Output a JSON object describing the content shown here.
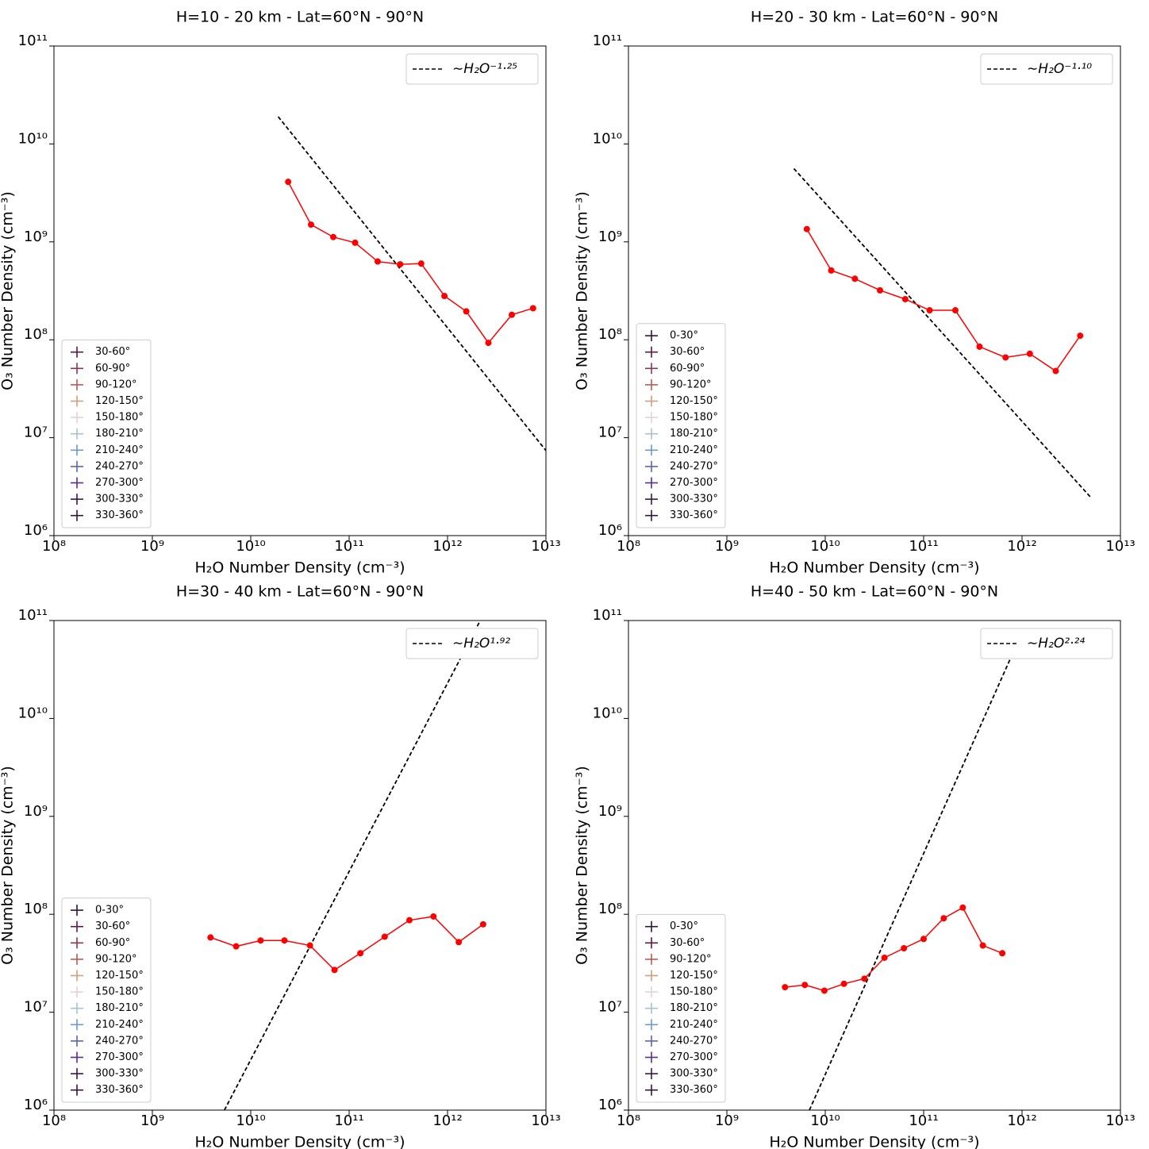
{
  "chart_data": [
    {
      "type": "line",
      "title": "H=10 - 20 km - Lat=60°N - 90°N",
      "xlabel": "H₂O Number Density (cm⁻³)",
      "ylabel": "O₃ Number Density (cm⁻³)",
      "xscale": "log",
      "yscale": "log",
      "xlim": [
        100000000.0,
        10000000000000.0
      ],
      "ylim": [
        1000000.0,
        100000000000.0
      ],
      "xticks": [
        {
          "value": 100000000.0,
          "label": "10⁸"
        },
        {
          "value": 1000000000.0,
          "label": "10⁹"
        },
        {
          "value": 10000000000.0,
          "label": "10¹⁰"
        },
        {
          "value": 100000000000.0,
          "label": "10¹¹"
        },
        {
          "value": 1000000000000.0,
          "label": "10¹²"
        },
        {
          "value": 10000000000000.0,
          "label": "10¹³"
        }
      ],
      "yticks": [
        {
          "value": 1000000.0,
          "label": "10⁶"
        },
        {
          "value": 10000000.0,
          "label": "10⁷"
        },
        {
          "value": 100000000.0,
          "label": "10⁸"
        },
        {
          "value": 1000000000.0,
          "label": "10⁹"
        },
        {
          "value": 10000000000.0,
          "label": "10¹⁰"
        },
        {
          "value": 100000000000.0,
          "label": "10¹¹"
        }
      ],
      "series": [
        {
          "color": "#ff0000",
          "x": [
            24000000000.0,
            41000000000.0,
            69000000000.0,
            115000000000.0,
            195000000000.0,
            330000000000.0,
            540000000000.0,
            930000000000.0,
            1550000000000.0,
            2600000000000.0,
            4500000000000.0,
            7400000000000.0
          ],
          "values": [
            4100000000.0,
            1500000000.0,
            1120000000.0,
            980000000.0,
            630000000.0,
            590000000.0,
            600000000.0,
            280000000.0,
            195000000.0,
            93000000.0,
            180000000.0,
            210000000.0
          ]
        }
      ],
      "fit": {
        "label": "∼H₂O⁻¹·²⁵",
        "color": "#000000",
        "x": [
          19000000000.0,
          10000000000000.0
        ],
        "values": [
          19000000000.0,
          7400000.0
        ]
      },
      "legend_location": "lower left",
      "fit_legend_location": "upper right",
      "legend": [
        {
          "name": "30-60°",
          "color": "#5a1a48"
        },
        {
          "name": "60-90°",
          "color": "#8a3551"
        },
        {
          "name": "90-120°",
          "color": "#b05e55"
        },
        {
          "name": "120-150°",
          "color": "#cfa080"
        },
        {
          "name": "150-180°",
          "color": "#e4d2d6"
        },
        {
          "name": "180-210°",
          "color": "#a9c1cc"
        },
        {
          "name": "210-240°",
          "color": "#6d9ac6"
        },
        {
          "name": "240-270°",
          "color": "#5b64b3"
        },
        {
          "name": "270-300°",
          "color": "#5c2c86"
        },
        {
          "name": "300-330°",
          "color": "#3b1745"
        },
        {
          "name": "330-360°",
          "color": "#36143d"
        }
      ]
    },
    {
      "type": "line",
      "title": "H=20 - 30 km - Lat=60°N - 90°N",
      "xlabel": "H₂O Number Density (cm⁻³)",
      "ylabel": "O₃ Number Density (cm⁻³)",
      "xscale": "log",
      "yscale": "log",
      "xlim": [
        100000000.0,
        10000000000000.0
      ],
      "ylim": [
        1000000.0,
        100000000000.0
      ],
      "xticks": [
        {
          "value": 100000000.0,
          "label": "10⁸"
        },
        {
          "value": 1000000000.0,
          "label": "10⁹"
        },
        {
          "value": 10000000000.0,
          "label": "10¹⁰"
        },
        {
          "value": 100000000000.0,
          "label": "10¹¹"
        },
        {
          "value": 1000000000000.0,
          "label": "10¹²"
        },
        {
          "value": 10000000000000.0,
          "label": "10¹³"
        }
      ],
      "yticks": [
        {
          "value": 1000000.0,
          "label": "10⁶"
        },
        {
          "value": 10000000.0,
          "label": "10⁷"
        },
        {
          "value": 100000000.0,
          "label": "10⁸"
        },
        {
          "value": 1000000000.0,
          "label": "10⁹"
        },
        {
          "value": 10000000000.0,
          "label": "10¹⁰"
        },
        {
          "value": 100000000000.0,
          "label": "10¹¹"
        }
      ],
      "series": [
        {
          "color": "#ff0000",
          "x": [
            6500000000.0,
            11500000000.0,
            20000000000.0,
            36000000000.0,
            65000000000.0,
            115000000000.0,
            210000000000.0,
            370000000000.0,
            680000000000.0,
            1200000000000.0,
            2200000000000.0,
            3900000000000.0
          ],
          "values": [
            1350000000.0,
            510000000.0,
            420000000.0,
            320000000.0,
            260000000.0,
            200000000.0,
            200000000.0,
            85000000.0,
            66000000.0,
            72000000.0,
            48000000.0,
            110000000.0
          ]
        }
      ],
      "fit": {
        "label": "∼H₂O⁻¹·¹⁰",
        "color": "#000000",
        "x": [
          4800000000.0,
          5100000000000.0
        ],
        "values": [
          5600000000.0,
          2400000.0
        ]
      },
      "legend_location": "lower left",
      "fit_legend_location": "upper right",
      "legend": [
        {
          "name": "0-30°",
          "color": "#2f1436"
        },
        {
          "name": "30-60°",
          "color": "#5a1a48"
        },
        {
          "name": "60-90°",
          "color": "#8a3551"
        },
        {
          "name": "90-120°",
          "color": "#b05e55"
        },
        {
          "name": "120-150°",
          "color": "#cfa080"
        },
        {
          "name": "150-180°",
          "color": "#e4d2d6"
        },
        {
          "name": "180-210°",
          "color": "#a9c1cc"
        },
        {
          "name": "210-240°",
          "color": "#6d9ac6"
        },
        {
          "name": "240-270°",
          "color": "#5b64b3"
        },
        {
          "name": "270-300°",
          "color": "#5c2c86"
        },
        {
          "name": "300-330°",
          "color": "#3b1745"
        },
        {
          "name": "330-360°",
          "color": "#36143d"
        }
      ]
    },
    {
      "type": "line",
      "title": "H=30 - 40 km - Lat=60°N - 90°N",
      "xlabel": "H₂O Number Density (cm⁻³)",
      "ylabel": "O₃ Number Density (cm⁻³)",
      "xscale": "log",
      "yscale": "log",
      "xlim": [
        100000000.0,
        10000000000000.0
      ],
      "ylim": [
        1000000.0,
        100000000000.0
      ],
      "xticks": [
        {
          "value": 100000000.0,
          "label": "10⁸"
        },
        {
          "value": 1000000000.0,
          "label": "10⁹"
        },
        {
          "value": 10000000000.0,
          "label": "10¹⁰"
        },
        {
          "value": 100000000000.0,
          "label": "10¹¹"
        },
        {
          "value": 1000000000000.0,
          "label": "10¹²"
        },
        {
          "value": 10000000000000.0,
          "label": "10¹³"
        }
      ],
      "yticks": [
        {
          "value": 1000000.0,
          "label": "10⁶"
        },
        {
          "value": 10000000.0,
          "label": "10⁷"
        },
        {
          "value": 100000000.0,
          "label": "10⁸"
        },
        {
          "value": 1000000000.0,
          "label": "10⁹"
        },
        {
          "value": 10000000000.0,
          "label": "10¹⁰"
        },
        {
          "value": 100000000000.0,
          "label": "10¹¹"
        }
      ],
      "series": [
        {
          "color": "#ff0000",
          "x": [
            3900000000.0,
            7100000000.0,
            12600000000.0,
            22000000000.0,
            40000000000.0,
            71000000000.0,
            130000000000.0,
            230000000000.0,
            410000000000.0,
            720000000000.0,
            1300000000000.0,
            2300000000000.0
          ],
          "values": [
            58000000.0,
            47000000.0,
            54000000.0,
            54000000.0,
            48000000.0,
            27000000.0,
            40000000.0,
            59000000.0,
            87000000.0,
            95000000.0,
            52000000.0,
            79000000.0
          ]
        }
      ],
      "fit": {
        "label": "∼H₂O¹·⁹²",
        "color": "#000000",
        "x": [
          5400000000.0,
          2150000000000.0
        ],
        "values": [
          1000000.0,
          100000000000.0
        ]
      },
      "legend_location": "lower left",
      "fit_legend_location": "upper right",
      "legend": [
        {
          "name": "0-30°",
          "color": "#2f1436"
        },
        {
          "name": "30-60°",
          "color": "#5a1a48"
        },
        {
          "name": "60-90°",
          "color": "#8a3551"
        },
        {
          "name": "90-120°",
          "color": "#b05e55"
        },
        {
          "name": "120-150°",
          "color": "#cfa080"
        },
        {
          "name": "150-180°",
          "color": "#e4d2d6"
        },
        {
          "name": "180-210°",
          "color": "#a9c1cc"
        },
        {
          "name": "210-240°",
          "color": "#6d9ac6"
        },
        {
          "name": "240-270°",
          "color": "#5b64b3"
        },
        {
          "name": "270-300°",
          "color": "#5c2c86"
        },
        {
          "name": "300-330°",
          "color": "#3b1745"
        },
        {
          "name": "330-360°",
          "color": "#36143d"
        }
      ]
    },
    {
      "type": "line",
      "title": "H=40 - 50 km - Lat=60°N - 90°N",
      "xlabel": "H₂O Number Density (cm⁻³)",
      "ylabel": "O₃ Number Density (cm⁻³)",
      "xscale": "log",
      "yscale": "log",
      "xlim": [
        100000000.0,
        10000000000000.0
      ],
      "ylim": [
        1000000.0,
        100000000000.0
      ],
      "xticks": [
        {
          "value": 100000000.0,
          "label": "10⁸"
        },
        {
          "value": 1000000000.0,
          "label": "10⁹"
        },
        {
          "value": 10000000000.0,
          "label": "10¹⁰"
        },
        {
          "value": 100000000000.0,
          "label": "10¹¹"
        },
        {
          "value": 1000000000000.0,
          "label": "10¹²"
        },
        {
          "value": 10000000000000.0,
          "label": "10¹³"
        }
      ],
      "yticks": [
        {
          "value": 1000000.0,
          "label": "10⁶"
        },
        {
          "value": 10000000.0,
          "label": "10⁷"
        },
        {
          "value": 100000000.0,
          "label": "10⁸"
        },
        {
          "value": 1000000000.0,
          "label": "10⁹"
        },
        {
          "value": 10000000000.0,
          "label": "10¹⁰"
        },
        {
          "value": 100000000000.0,
          "label": "10¹¹"
        }
      ],
      "series": [
        {
          "color": "#ff0000",
          "x": [
            3900000000.0,
            6200000000.0,
            9800000000.0,
            15500000000.0,
            25000000000.0,
            40000000000.0,
            63000000000.0,
            100000000000.0,
            160000000000.0,
            250000000000.0,
            400000000000.0,
            630000000000.0
          ],
          "values": [
            18000000.0,
            19000000.0,
            16600000.0,
            19500000.0,
            22000000.0,
            36000000.0,
            45000000.0,
            56000000.0,
            91000000.0,
            117000000.0,
            48000000.0,
            40000000.0
          ]
        }
      ],
      "fit": {
        "label": "∼H₂O²·²⁴",
        "color": "#000000",
        "x": [
          6900000000.0,
          810000000000.0
        ],
        "values": [
          1000000.0,
          47000000000.0
        ]
      },
      "legend_location": "lower left",
      "fit_legend_location": "upper right",
      "legend": [
        {
          "name": "0-30°",
          "color": "#2f1436"
        },
        {
          "name": "30-60°",
          "color": "#5a1a48"
        },
        {
          "name": "90-120°",
          "color": "#b05e55"
        },
        {
          "name": "120-150°",
          "color": "#cfa080"
        },
        {
          "name": "150-180°",
          "color": "#e4d2d6"
        },
        {
          "name": "180-210°",
          "color": "#a9c1cc"
        },
        {
          "name": "210-240°",
          "color": "#6d9ac6"
        },
        {
          "name": "240-270°",
          "color": "#5b64b3"
        },
        {
          "name": "270-300°",
          "color": "#5c2c86"
        },
        {
          "name": "300-330°",
          "color": "#3b1745"
        },
        {
          "name": "330-360°",
          "color": "#36143d"
        }
      ]
    }
  ]
}
